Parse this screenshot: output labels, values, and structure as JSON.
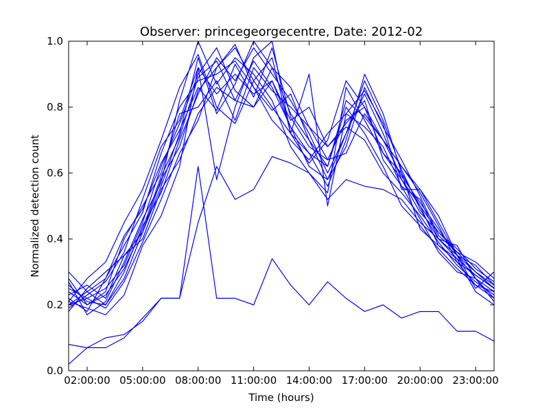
{
  "chart_data": {
    "type": "line",
    "title": "Observer: princegeorgecentre, Date: 2012-02",
    "xlabel": "Time (hours)",
    "ylabel": "Normalized detection count",
    "xlim": [
      1,
      24
    ],
    "ylim": [
      0,
      1
    ],
    "x_ticks": [
      2,
      5,
      8,
      11,
      14,
      17,
      20,
      23
    ],
    "x_tick_labels": [
      "02:00:00",
      "05:00:00",
      "08:00:00",
      "11:00:00",
      "14:00:00",
      "17:00:00",
      "20:00:00",
      "23:00:00"
    ],
    "y_ticks": [
      0.0,
      0.2,
      0.4,
      0.6,
      0.8,
      1.0
    ],
    "y_tick_labels": [
      "0.0",
      "0.2",
      "0.4",
      "0.6",
      "0.8",
      "1.0"
    ],
    "grid": false,
    "line_color": "#0000ff",
    "x": [
      1,
      2,
      3,
      4,
      5,
      6,
      7,
      8,
      9,
      10,
      11,
      12,
      13,
      14,
      15,
      16,
      17,
      18,
      19,
      20,
      21,
      22,
      23,
      24
    ],
    "series": [
      {
        "values": [
          0.02,
          0.07,
          0.07,
          0.1,
          0.16,
          0.22,
          0.22,
          0.45,
          0.62,
          0.52,
          0.55,
          0.65,
          0.63,
          0.6,
          0.52,
          0.58,
          0.56,
          0.55,
          0.52,
          0.45,
          0.4,
          0.35,
          0.3,
          0.25
        ]
      },
      {
        "values": [
          0.08,
          0.07,
          0.1,
          0.11,
          0.15,
          0.22,
          0.22,
          0.62,
          0.22,
          0.22,
          0.2,
          0.34,
          0.26,
          0.2,
          0.27,
          0.22,
          0.18,
          0.2,
          0.16,
          0.18,
          0.18,
          0.12,
          0.12,
          0.09
        ]
      },
      {
        "values": [
          0.21,
          0.19,
          0.17,
          0.23,
          0.38,
          0.47,
          0.62,
          0.92,
          0.58,
          0.8,
          0.95,
          1.0,
          0.72,
          0.9,
          0.5,
          0.78,
          0.85,
          0.75,
          0.55,
          0.55,
          0.45,
          0.35,
          0.25,
          0.3
        ]
      },
      {
        "values": [
          0.18,
          0.25,
          0.3,
          0.35,
          0.42,
          0.58,
          0.68,
          0.85,
          0.92,
          0.98,
          0.88,
          0.8,
          0.72,
          0.63,
          0.7,
          0.88,
          0.8,
          0.66,
          0.58,
          0.5,
          0.42,
          0.36,
          0.33,
          0.28
        ]
      },
      {
        "values": [
          0.3,
          0.24,
          0.2,
          0.28,
          0.42,
          0.56,
          0.72,
          0.95,
          0.78,
          0.87,
          1.0,
          0.92,
          0.78,
          0.7,
          0.62,
          0.82,
          0.77,
          0.7,
          0.62,
          0.55,
          0.47,
          0.35,
          0.32,
          0.26
        ]
      },
      {
        "values": [
          0.24,
          0.2,
          0.24,
          0.4,
          0.5,
          0.6,
          0.78,
          0.8,
          0.88,
          0.76,
          0.92,
          0.85,
          0.8,
          0.74,
          0.68,
          0.75,
          0.82,
          0.64,
          0.56,
          0.52,
          0.4,
          0.38,
          0.28,
          0.22
        ]
      },
      {
        "values": [
          0.2,
          0.22,
          0.25,
          0.32,
          0.45,
          0.62,
          0.75,
          0.9,
          0.98,
          0.85,
          0.8,
          0.88,
          0.74,
          0.66,
          0.56,
          0.7,
          0.9,
          0.78,
          0.6,
          0.5,
          0.38,
          0.33,
          0.26,
          0.24
        ]
      },
      {
        "values": [
          0.22,
          0.18,
          0.28,
          0.38,
          0.48,
          0.66,
          0.8,
          0.88,
          0.9,
          0.94,
          0.86,
          0.76,
          0.7,
          0.64,
          0.72,
          0.78,
          0.74,
          0.68,
          0.56,
          0.46,
          0.36,
          0.3,
          0.28,
          0.21
        ]
      },
      {
        "values": [
          0.26,
          0.21,
          0.2,
          0.3,
          0.44,
          0.54,
          0.7,
          0.84,
          0.95,
          0.88,
          0.98,
          0.9,
          0.82,
          0.72,
          0.6,
          0.72,
          0.84,
          0.72,
          0.58,
          0.48,
          0.42,
          0.37,
          0.31,
          0.27
        ]
      },
      {
        "values": [
          0.23,
          0.26,
          0.22,
          0.35,
          0.4,
          0.55,
          0.64,
          0.78,
          0.86,
          0.82,
          0.8,
          0.92,
          0.86,
          0.74,
          0.64,
          0.66,
          0.78,
          0.7,
          0.62,
          0.54,
          0.44,
          0.33,
          0.29,
          0.25
        ]
      },
      {
        "values": [
          0.19,
          0.23,
          0.27,
          0.36,
          0.52,
          0.68,
          0.76,
          0.92,
          0.84,
          0.9,
          0.84,
          0.88,
          0.76,
          0.8,
          0.68,
          0.74,
          0.7,
          0.6,
          0.54,
          0.47,
          0.39,
          0.32,
          0.27,
          0.23
        ]
      },
      {
        "values": [
          0.27,
          0.17,
          0.21,
          0.33,
          0.46,
          0.57,
          0.82,
          1.0,
          0.87,
          0.95,
          0.9,
          0.82,
          0.68,
          0.6,
          0.54,
          0.86,
          0.76,
          0.66,
          0.6,
          0.43,
          0.38,
          0.34,
          0.24,
          0.2
        ]
      },
      {
        "values": [
          0.21,
          0.28,
          0.33,
          0.45,
          0.55,
          0.7,
          0.86,
          0.96,
          0.8,
          0.75,
          0.88,
          0.95,
          0.72,
          0.66,
          0.62,
          0.8,
          0.72,
          0.62,
          0.5,
          0.44,
          0.37,
          0.31,
          0.26,
          0.22
        ]
      },
      {
        "values": [
          0.25,
          0.22,
          0.19,
          0.27,
          0.39,
          0.52,
          0.66,
          0.76,
          0.92,
          0.99,
          0.86,
          0.79,
          0.84,
          0.7,
          0.58,
          0.68,
          0.86,
          0.74,
          0.64,
          0.53,
          0.41,
          0.36,
          0.3,
          0.26
        ]
      },
      {
        "values": [
          0.2,
          0.24,
          0.28,
          0.41,
          0.49,
          0.63,
          0.73,
          0.86,
          0.79,
          0.93,
          0.83,
          0.98,
          0.77,
          0.68,
          0.64,
          0.76,
          0.8,
          0.7,
          0.59,
          0.51,
          0.43,
          0.35,
          0.28,
          0.24
        ]
      },
      {
        "values": [
          0.28,
          0.2,
          0.23,
          0.31,
          0.43,
          0.59,
          0.71,
          0.89,
          0.94,
          0.82,
          0.94,
          0.86,
          0.74,
          0.62,
          0.58,
          0.72,
          0.88,
          0.76,
          0.61,
          0.49,
          0.4,
          0.34,
          0.29,
          0.25
        ]
      }
    ]
  }
}
